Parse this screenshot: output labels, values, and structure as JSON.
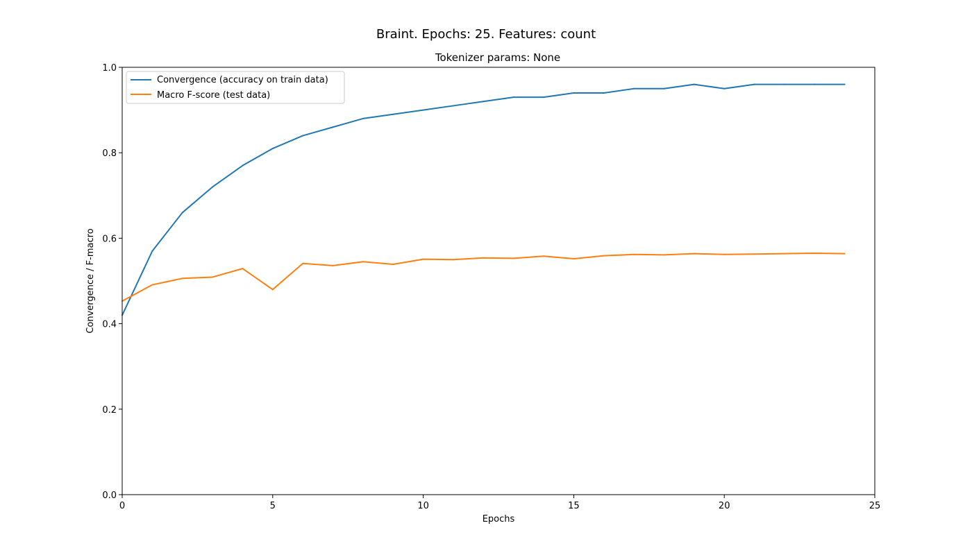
{
  "chart_data": {
    "type": "line",
    "title": "Braint. Epochs: 25. Features: count",
    "subtitle": "Tokenizer params: None",
    "xlabel": "Epochs",
    "ylabel": "Convergence / F-macro",
    "xlim": [
      0,
      25
    ],
    "ylim": [
      0,
      1.0
    ],
    "xticks": [
      "0",
      "5",
      "10",
      "15",
      "20",
      "25"
    ],
    "yticks": [
      "0.0",
      "0.2",
      "0.4",
      "0.6",
      "0.8",
      "1.0"
    ],
    "grid": false,
    "legend_position": "upper-left",
    "x": [
      0,
      1,
      2,
      3,
      4,
      5,
      6,
      7,
      8,
      9,
      10,
      11,
      12,
      13,
      14,
      15,
      16,
      17,
      18,
      19,
      20,
      21,
      22,
      23,
      24
    ],
    "series": [
      {
        "name": "Convergence (accuracy on train data)",
        "color": "#1f77b4",
        "values": [
          0.42,
          0.57,
          0.66,
          0.72,
          0.77,
          0.81,
          0.84,
          0.86,
          0.88,
          0.89,
          0.9,
          0.91,
          0.92,
          0.93,
          0.93,
          0.94,
          0.94,
          0.95,
          0.95,
          0.96,
          0.95,
          0.96,
          0.96,
          0.96,
          0.96
        ]
      },
      {
        "name": "Macro F-score (test data)",
        "color": "#ff7f0e",
        "values": [
          0.453,
          0.491,
          0.506,
          0.509,
          0.529,
          0.48,
          0.541,
          0.536,
          0.545,
          0.539,
          0.551,
          0.55,
          0.554,
          0.553,
          0.558,
          0.552,
          0.559,
          0.562,
          0.561,
          0.564,
          0.562,
          0.563,
          0.564,
          0.565,
          0.564
        ]
      }
    ]
  }
}
